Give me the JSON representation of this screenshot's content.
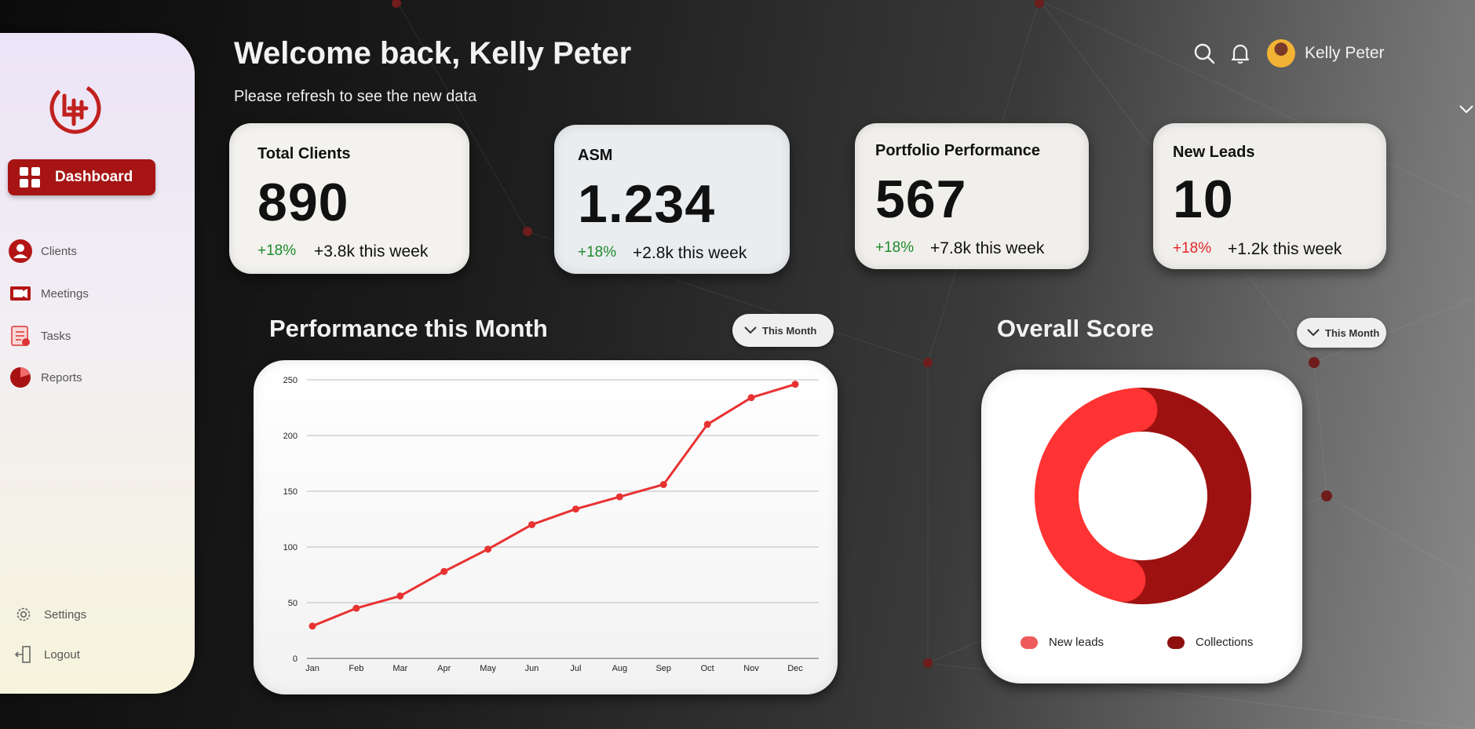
{
  "colors": {
    "accent": "#a61414",
    "line": "#e83232",
    "donut_light": "#ff3333",
    "donut_dark": "#9e1111",
    "positive": "#1d8a2b",
    "negative": "#e22626"
  },
  "sidebar": {
    "logo_icon": "company-logo-icon",
    "items": [
      {
        "label": "Dashboard",
        "icon": "dashboard-grid-icon",
        "active": true
      },
      {
        "label": "Clients",
        "icon": "user-icon"
      },
      {
        "label": "Meetings",
        "icon": "video-camera-icon"
      },
      {
        "label": "Tasks",
        "icon": "task-list-icon"
      },
      {
        "label": "Reports",
        "icon": "pie-chart-icon"
      }
    ],
    "bottom": [
      {
        "label": "Settings",
        "icon": "gear-icon"
      },
      {
        "label": "Logout",
        "icon": "logout-icon"
      }
    ]
  },
  "header": {
    "welcome": "Welcome back, Kelly Peter",
    "subtitle": "Please refresh to see the new data",
    "user_name": "Kelly Peter"
  },
  "cards": [
    {
      "label": "Total Clients",
      "value": "890",
      "pct": "+18%",
      "week": "+3.8k this week",
      "trend": "up"
    },
    {
      "label": "ASM",
      "value": "1.234",
      "pct": "+18%",
      "week": "+2.8k this week",
      "trend": "up"
    },
    {
      "label": "Portfolio Performance",
      "value": "567",
      "pct": "+18%",
      "week": "+7.8k this week",
      "trend": "up"
    },
    {
      "label": "New Leads",
      "value": "10",
      "pct": "+18%",
      "week": "+1.2k this week",
      "trend": "down"
    }
  ],
  "performance": {
    "title": "Performance this Month",
    "filter": "This Month"
  },
  "score": {
    "title": "Overall Score",
    "filter": "This Month",
    "legend": [
      "New leads",
      "Collections"
    ]
  },
  "chart_data": [
    {
      "type": "line",
      "title": "Performance this Month",
      "categories": [
        "Jan",
        "Feb",
        "Mar",
        "Apr",
        "May",
        "Jun",
        "Jul",
        "Aug",
        "Sep",
        "Oct",
        "Nov",
        "Dec"
      ],
      "values": [
        29,
        45,
        56,
        78,
        98,
        120,
        134,
        145,
        156,
        210,
        234,
        246
      ],
      "ylim": [
        0,
        250
      ],
      "yticks": [
        0,
        50,
        100,
        150,
        200,
        250
      ],
      "grid": true,
      "xlabel": "",
      "ylabel": ""
    },
    {
      "type": "pie",
      "title": "Overall Score",
      "donut": true,
      "categories": [
        "New leads",
        "Collections"
      ],
      "values": [
        45,
        55
      ],
      "legend": "bottom"
    }
  ]
}
